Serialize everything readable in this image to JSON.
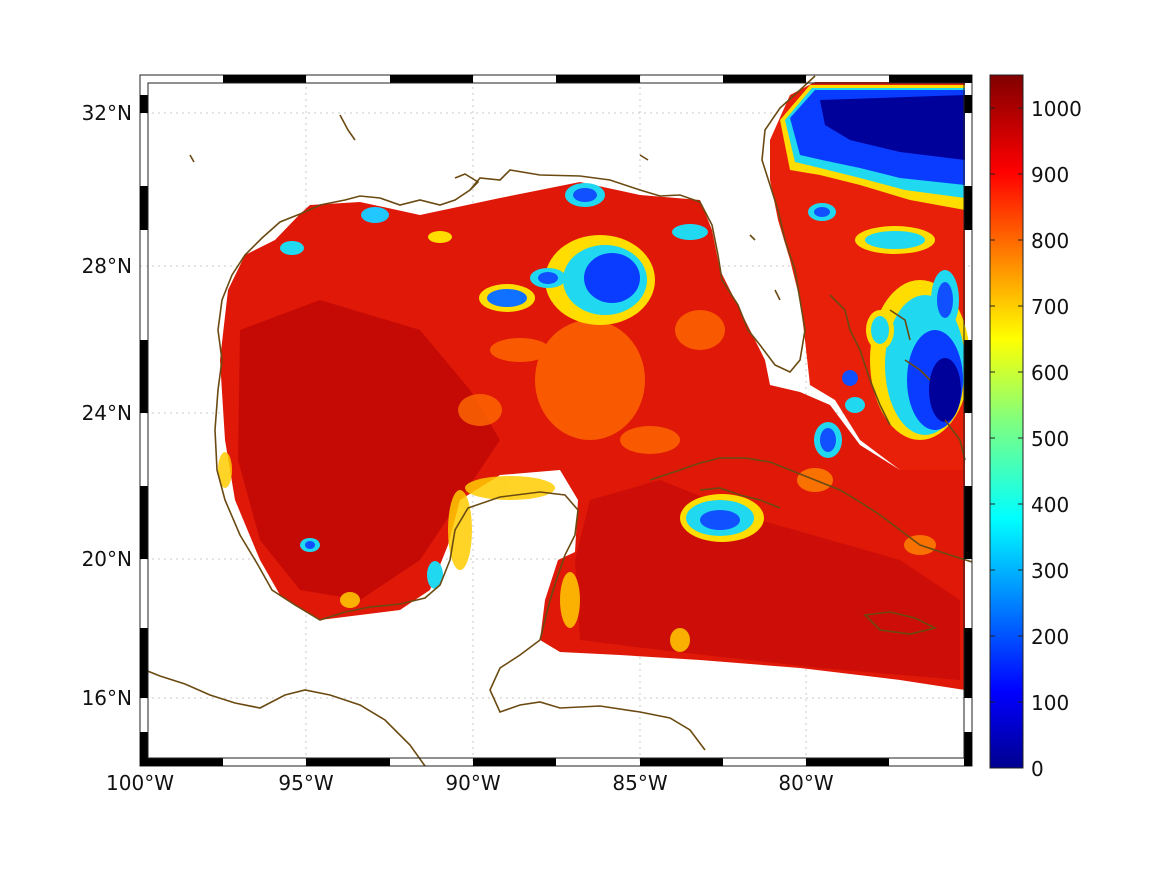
{
  "map": {
    "lon_labels": [
      "100°W",
      "95°W",
      "90°W",
      "85°W",
      "80°W"
    ],
    "lat_labels": [
      "16°N",
      "20°N",
      "24°N",
      "28°N",
      "32°N"
    ],
    "extent": {
      "lon": [
        -100,
        -75
      ],
      "lat": [
        14.5,
        33
      ]
    },
    "coastline_color": "#6b4a12",
    "grid": true
  },
  "colorbar": {
    "tick_labels": [
      "0",
      "100",
      "200",
      "300",
      "400",
      "500",
      "600",
      "700",
      "800",
      "900",
      "1000"
    ],
    "range": [
      0,
      1050
    ],
    "colormap": "jet"
  },
  "palette": {
    "dark_red": "#b40000",
    "red": "#e31a0a",
    "orange": "#ff7a00",
    "yellow": "#f2f200",
    "cyan": "#20d8f0",
    "blue": "#0a3cff",
    "dark_blue": "#00008f"
  }
}
